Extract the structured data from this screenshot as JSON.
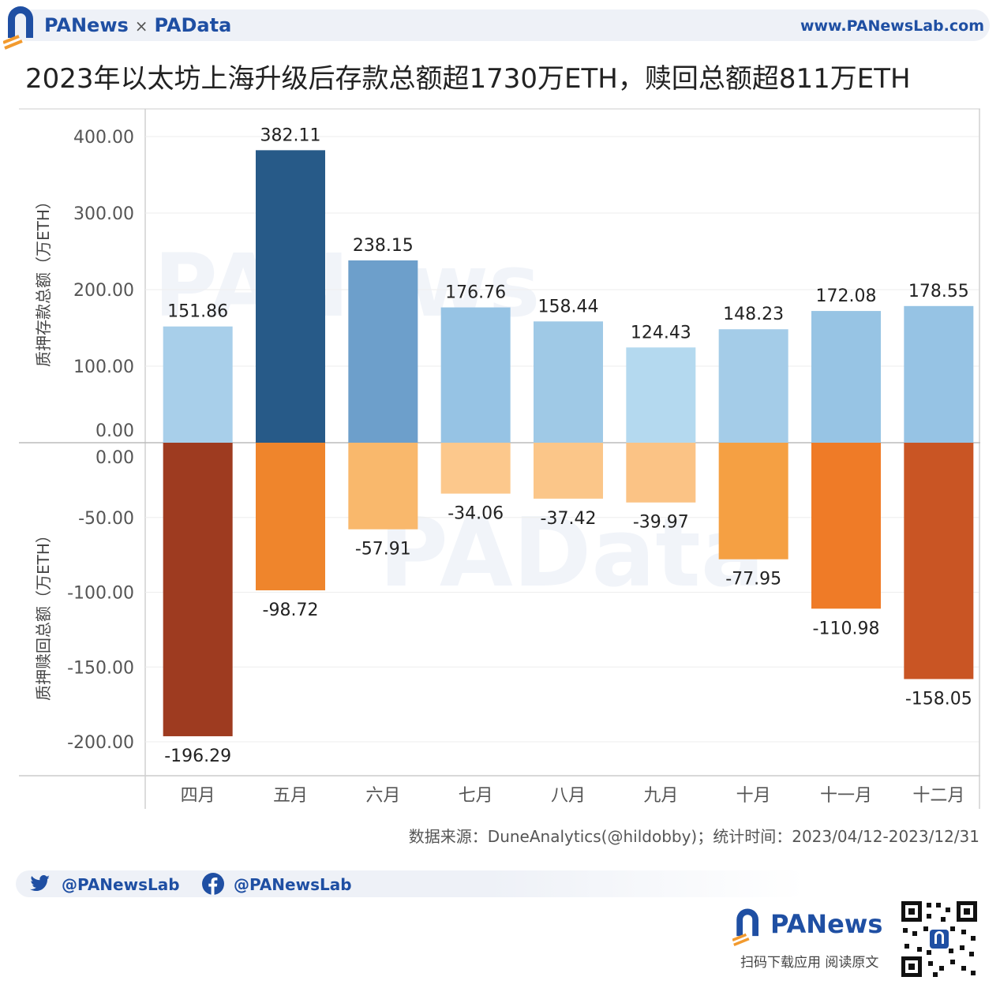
{
  "header": {
    "brand_left": "PANews",
    "separator": "×",
    "brand_right": "PAData",
    "website": "www.PANewsLab.com"
  },
  "title": "2023年以太坊上海升级后存款总额超1730万ETH，赎回总额超811万ETH",
  "chart_data": {
    "type": "bar",
    "categories": [
      "四月",
      "五月",
      "六月",
      "七月",
      "八月",
      "九月",
      "十月",
      "十一月",
      "十二月"
    ],
    "top_panel": {
      "ylabel": "质押存款总额（万ETH）",
      "ylim": [
        0,
        400
      ],
      "ticks": [
        "400.00",
        "300.00",
        "200.00",
        "100.00",
        "0.00"
      ],
      "tick_values": [
        400,
        300,
        200,
        100,
        0
      ],
      "values": [
        151.86,
        382.11,
        238.15,
        176.76,
        158.44,
        124.43,
        148.23,
        172.08,
        178.55
      ],
      "labels": [
        "151.86",
        "382.11",
        "238.15",
        "176.76",
        "158.44",
        "124.43",
        "148.23",
        "172.08",
        "178.55"
      ],
      "colors": [
        "#a8cfea",
        "#275a88",
        "#6d9fcb",
        "#96c3e4",
        "#9fc9e6",
        "#b4d9ef",
        "#a4cce8",
        "#97c4e4",
        "#96c3e4"
      ]
    },
    "bottom_panel": {
      "ylabel": "质押赎回总额（万ETH）",
      "ylim": [
        -225,
        0
      ],
      "ticks": [
        "0.00",
        "-50.00",
        "-100.00",
        "-150.00",
        "-200.00"
      ],
      "tick_values": [
        0,
        -50,
        -100,
        -150,
        -200
      ],
      "values": [
        -196.29,
        -98.72,
        -57.91,
        -34.06,
        -37.42,
        -39.97,
        -77.95,
        -110.98,
        -158.05
      ],
      "labels": [
        "-196.29",
        "-98.72",
        "-57.91",
        "-34.06",
        "-37.42",
        "-39.97",
        "-77.95",
        "-110.98",
        "-158.05"
      ],
      "colors": [
        "#9e3b20",
        "#ef852c",
        "#f9b86c",
        "#fcc88c",
        "#fbc689",
        "#fbc385",
        "#f5a043",
        "#ef7b27",
        "#c95524"
      ]
    },
    "grid": true,
    "legend": "none"
  },
  "source": "数据来源：DuneAnalytics(@hildobby)；统计时间：2023/04/12-2023/12/31",
  "social": {
    "twitter": "@PANewsLab",
    "facebook": "@PANewsLab"
  },
  "footer": {
    "brand": "PANews",
    "tagline": "扫码下载应用  阅读原文"
  },
  "colors": {
    "brand_blue": "#1f4fa3",
    "brand_orange": "#f29a2e"
  }
}
